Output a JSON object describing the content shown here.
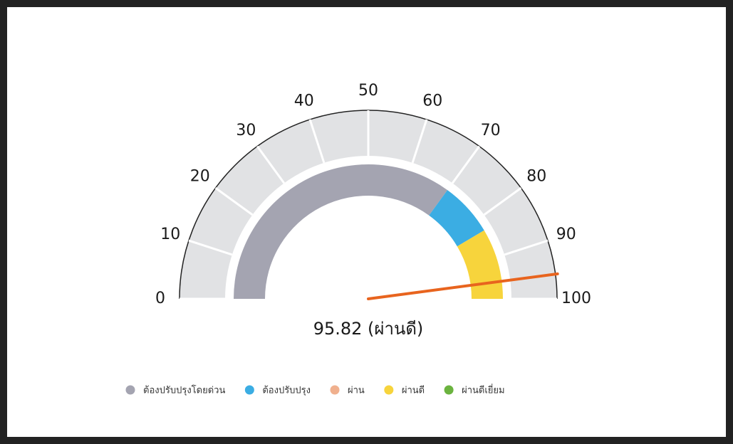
{
  "chart_data": {
    "type": "gauge",
    "value": 95.82,
    "value_label": "95.82 (ผ่านดี)",
    "range": [
      0,
      100
    ],
    "ticks": [
      0,
      10,
      20,
      30,
      40,
      50,
      60,
      70,
      80,
      90,
      100
    ],
    "series": [
      {
        "name": "ต้องปรับปรุงโดยด่วน",
        "color": "#a4a4b1",
        "from": 0,
        "to": 70
      },
      {
        "name": "ต้องปรับปรุง",
        "color": "#3badE3",
        "from": 70,
        "to": 83
      },
      {
        "name": "ผ่าน",
        "color": "#f0b08e"
      },
      {
        "name": "ผ่านดี",
        "color": "#f7d43c",
        "from": 83,
        "to": 100
      },
      {
        "name": "ผ่านดีเยี่ยม",
        "color": "#6bb33f"
      }
    ],
    "needle_color": "#e8641e"
  }
}
